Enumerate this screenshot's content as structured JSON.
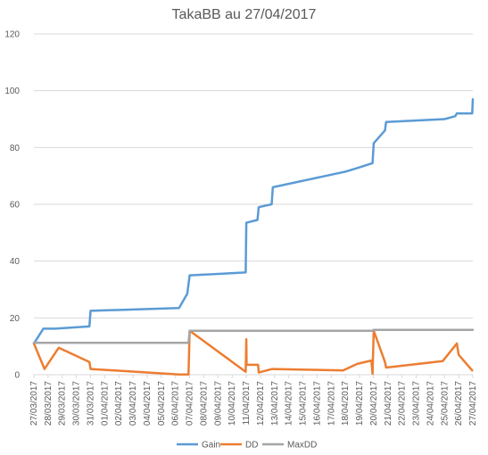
{
  "chart_data": {
    "type": "line",
    "title": "TakaBB au 27/04/2017",
    "xlabel": "",
    "ylabel": "",
    "ylim": [
      0,
      120
    ],
    "yticks": [
      0,
      20,
      40,
      60,
      80,
      100,
      120
    ],
    "grid": true,
    "legend_position": "bottom",
    "x_ticks": [
      "27/03/2017",
      "28/03/2017",
      "29/03/2017",
      "30/03/2017",
      "31/03/2017",
      "01/04/2017",
      "02/04/2017",
      "03/04/2017",
      "04/04/2017",
      "05/04/2017",
      "06/04/2017",
      "07/04/2017",
      "08/04/2017",
      "09/04/2017",
      "10/04/2017",
      "11/04/2017",
      "12/04/2017",
      "13/04/2017",
      "14/04/2017",
      "15/04/2017",
      "16/04/2017",
      "17/04/2017",
      "18/04/2017",
      "19/04/2017",
      "20/04/2017",
      "21/04/2017",
      "22/04/2017",
      "23/04/2017",
      "24/04/2017",
      "25/04/2017",
      "26/04/2017",
      "27/04/2017"
    ],
    "series": [
      {
        "name": "Gain",
        "color": "#5b9bd5",
        "points": [
          [
            "27/03/2017 00:00",
            11
          ],
          [
            "27/03/2017 16:00",
            16.2
          ],
          [
            "28/03/2017 12:00",
            16.2
          ],
          [
            "30/03/2017 22:00",
            17
          ],
          [
            "31/03/2017 00:00",
            22.5
          ],
          [
            "06/04/2017 06:00",
            23.5
          ],
          [
            "06/04/2017 20:00",
            28.5
          ],
          [
            "07/04/2017 00:00",
            35
          ],
          [
            "10/04/2017 23:00",
            36
          ],
          [
            "11/04/2017 00:00",
            53.5
          ],
          [
            "11/04/2017 19:00",
            54.5
          ],
          [
            "11/04/2017 21:00",
            59
          ],
          [
            "12/04/2017 19:00",
            60
          ],
          [
            "12/04/2017 21:00",
            66
          ],
          [
            "18/04/2017 00:00",
            71.5
          ],
          [
            "19/04/2017 00:00",
            73
          ],
          [
            "19/04/2017 22:00",
            74.5
          ],
          [
            "20/04/2017 00:00",
            81.5
          ],
          [
            "20/04/2017 19:00",
            86
          ],
          [
            "20/04/2017 21:00",
            89
          ],
          [
            "25/04/2017 00:00",
            90
          ],
          [
            "25/04/2017 18:00",
            91
          ],
          [
            "25/04/2017 21:00",
            92
          ],
          [
            "26/04/2017 23:00",
            92
          ],
          [
            "27/04/2017 00:00",
            97
          ]
        ]
      },
      {
        "name": "DD",
        "color": "#ed7d31",
        "points": [
          [
            "27/03/2017 00:00",
            11
          ],
          [
            "27/03/2017 18:00",
            2
          ],
          [
            "28/03/2017 18:00",
            9.5
          ],
          [
            "30/03/2017 22:00",
            4.5
          ],
          [
            "31/03/2017 00:00",
            2
          ],
          [
            "06/04/2017 06:00",
            0.1
          ],
          [
            "06/04/2017 22:00",
            0.1
          ],
          [
            "07/04/2017 00:00",
            15.5
          ],
          [
            "10/04/2017 23:00",
            1
          ],
          [
            "11/04/2017 00:00",
            12.5
          ],
          [
            "11/04/2017 00:30",
            3.5
          ],
          [
            "11/04/2017 20:00",
            3.5
          ],
          [
            "11/04/2017 21:00",
            0.8
          ],
          [
            "12/04/2017 20:00",
            2
          ],
          [
            "17/04/2017 20:00",
            1.5
          ],
          [
            "18/04/2017 20:00",
            3.8
          ],
          [
            "19/04/2017 20:00",
            5
          ],
          [
            "19/04/2017 22:00",
            0.3
          ],
          [
            "20/04/2017 00:00",
            15.5
          ],
          [
            "20/04/2017 19:00",
            4.5
          ],
          [
            "20/04/2017 21:00",
            2.5
          ],
          [
            "24/04/2017 21:00",
            4.8
          ],
          [
            "25/04/2017 21:00",
            11
          ],
          [
            "26/04/2017 00:00",
            7
          ],
          [
            "26/04/2017 23:00",
            1.5
          ]
        ]
      },
      {
        "name": "MaxDD",
        "color": "#a5a5a5",
        "points": [
          [
            "27/03/2017 00:00",
            11.2
          ],
          [
            "06/04/2017 22:00",
            11.2
          ],
          [
            "07/04/2017 00:00",
            15.5
          ],
          [
            "19/04/2017 22:00",
            15.5
          ],
          [
            "20/04/2017 00:00",
            15.8
          ],
          [
            "27/04/2017 00:00",
            15.8
          ]
        ]
      }
    ]
  }
}
